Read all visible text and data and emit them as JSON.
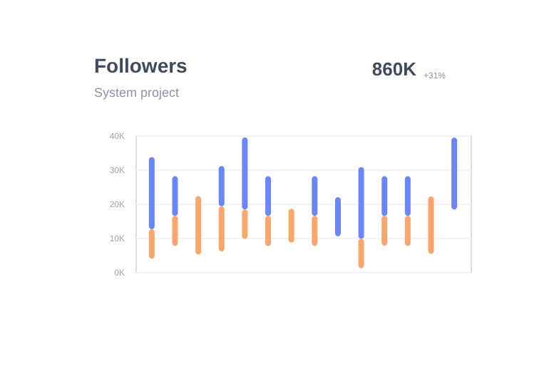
{
  "chart_data": {
    "type": "bar",
    "title": "Followers",
    "subtitle": "System project",
    "annotations": [
      "860K",
      "+31%"
    ],
    "categories": [
      null,
      null,
      null,
      null,
      null,
      null,
      null,
      null,
      null,
      null,
      null,
      null,
      null,
      null
    ],
    "series": [
      {
        "color": "#f9a66c",
        "base": [
          3.9,
          7.6,
          5.1,
          6,
          9.7,
          7.6,
          8.6,
          7.6,
          null,
          1.1,
          7.7,
          7.6,
          5.3,
          null
        ],
        "values": [
          8.6,
          8.8,
          17.1,
          13.2,
          8.6,
          8.8,
          9.9,
          8.8,
          null,
          8.6,
          8.7,
          8.8,
          16.8,
          null
        ]
      },
      {
        "color": "#6b86f6",
        "base": [
          12.5,
          16.4,
          null,
          19.2,
          18.3,
          16.4,
          null,
          16.4,
          10.4,
          9.7,
          16.4,
          16.4,
          null,
          18.3
        ],
        "values": [
          21.1,
          11.6,
          null,
          11.8,
          21.1,
          11.6,
          null,
          11.6,
          11.5,
          21,
          11.6,
          11.6,
          null,
          21
        ]
      }
    ],
    "ylim": [
      0,
      40
    ],
    "yticks": [
      {
        "value": 0,
        "label": "0K"
      },
      {
        "value": 10,
        "label": "10K"
      },
      {
        "value": 20,
        "label": "20K"
      },
      {
        "value": 30,
        "label": "30K"
      },
      {
        "value": 40,
        "label": "40K"
      }
    ],
    "grid": "y",
    "tick_labels": "y",
    "legend": false
  }
}
